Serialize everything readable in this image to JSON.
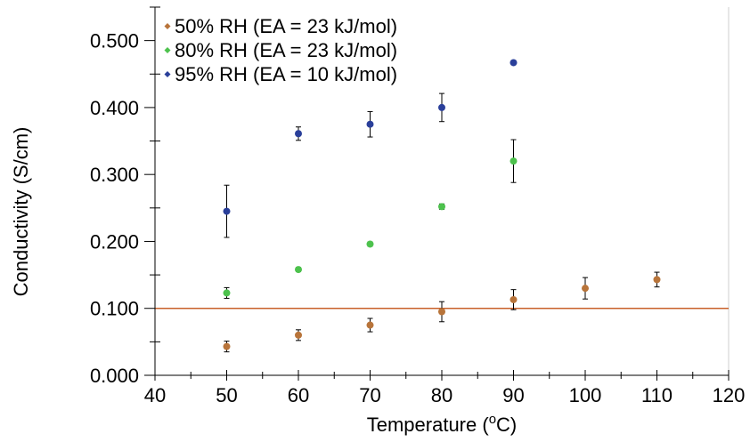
{
  "chart_data": {
    "type": "scatter",
    "title": "",
    "xlabel": "Temperature (",
    "xlabel_sup": "o",
    "xlabel_suffix": "C)",
    "ylabel": "Conductivity (S/cm)",
    "xlim": [
      40,
      120
    ],
    "ylim": [
      0,
      0.55
    ],
    "x_ticks": [
      40,
      50,
      60,
      70,
      80,
      90,
      100,
      110,
      120
    ],
    "x_tick_labels": [
      "40",
      "50",
      "60",
      "70",
      "80",
      "90",
      "100",
      "110",
      "120"
    ],
    "y_ticks": [
      0,
      0.1,
      0.2,
      0.3,
      0.4,
      0.5
    ],
    "y_tick_labels": [
      "0.000",
      "0.100",
      "0.200",
      "0.300",
      "0.400",
      "0.500"
    ],
    "grid": false,
    "legend_position": "top-left",
    "reference_line": {
      "y": 0.1,
      "color": "#c8602a"
    },
    "series": [
      {
        "name": "50% RH (EA = 23 kJ/mol)",
        "color": "#b8743a",
        "x": [
          50,
          60,
          70,
          80,
          90,
          100,
          110
        ],
        "y": [
          0.043,
          0.06,
          0.075,
          0.095,
          0.113,
          0.13,
          0.143
        ],
        "err": [
          0.008,
          0.008,
          0.01,
          0.015,
          0.015,
          0.016,
          0.011
        ]
      },
      {
        "name": "80% RH (EA = 23 kJ/mol)",
        "color": "#4dc24d",
        "x": [
          50,
          60,
          70,
          80,
          90
        ],
        "y": [
          0.123,
          0.158,
          0.196,
          0.252,
          0.32
        ],
        "err": [
          0.008,
          0.003,
          0.003,
          0.004,
          0.032
        ]
      },
      {
        "name": "95% RH (EA = 10 kJ/mol)",
        "color": "#2a3f9a",
        "x": [
          50,
          60,
          70,
          80,
          90
        ],
        "y": [
          0.245,
          0.361,
          0.375,
          0.4,
          0.467
        ],
        "err": [
          0.039,
          0.01,
          0.019,
          0.021,
          0.003
        ]
      }
    ]
  }
}
